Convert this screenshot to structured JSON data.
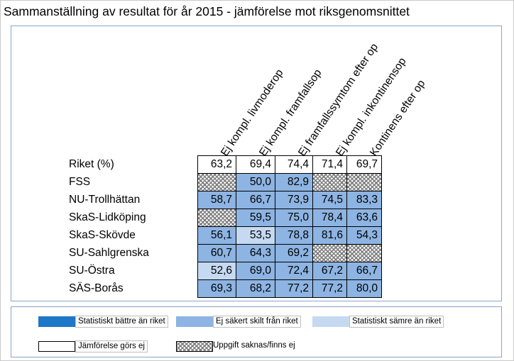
{
  "title": "Sammanställning av resultat för år 2015 - jämförelse mot riksgenomsnittet",
  "colors": {
    "battre": "#1f77c8",
    "ej_sakert": "#8db4e2",
    "samre": "#c5d9f1",
    "ej_jamforelse": "#ffffff"
  },
  "chart_data": {
    "type": "table",
    "columns": [
      "Ej kompl. livmoderop",
      "Ej kompl. framfallsop",
      "Ej framfallssymtom efter op",
      "Ej kompl. inkontinensop",
      "Kontinens efter op"
    ],
    "rows": [
      {
        "label": "Riket (%)",
        "values": [
          "63,2",
          "69,4",
          "74,4",
          "71,4",
          "69,7"
        ],
        "status": [
          "none",
          "none",
          "none",
          "none",
          "none"
        ]
      },
      {
        "label": "FSS",
        "values": [
          "",
          "50,0",
          "82,9",
          "",
          ""
        ],
        "status": [
          "missing",
          "mid",
          "mid",
          "missing",
          "missing"
        ]
      },
      {
        "label": "NU-Trollhättan",
        "values": [
          "58,7",
          "66,7",
          "73,9",
          "74,5",
          "83,3"
        ],
        "status": [
          "mid",
          "mid",
          "mid",
          "mid",
          "mid"
        ]
      },
      {
        "label": "SkaS-Lidköping",
        "values": [
          "",
          "59,5",
          "75,0",
          "78,4",
          "63,6"
        ],
        "status": [
          "missing",
          "mid",
          "mid",
          "mid",
          "mid"
        ]
      },
      {
        "label": "SkaS-Skövde",
        "values": [
          "56,1",
          "53,5",
          "78,8",
          "81,6",
          "54,3"
        ],
        "status": [
          "mid",
          "light",
          "mid",
          "mid",
          "mid"
        ]
      },
      {
        "label": "SU-Sahlgrenska",
        "values": [
          "60,7",
          "64,3",
          "69,2",
          "",
          ""
        ],
        "status": [
          "mid",
          "mid",
          "mid",
          "missing",
          "missing"
        ]
      },
      {
        "label": "SU-Östra",
        "values": [
          "52,6",
          "69,0",
          "72,4",
          "67,2",
          "66,7"
        ],
        "status": [
          "light",
          "mid",
          "mid",
          "mid",
          "mid"
        ]
      },
      {
        "label": "SÄS-Borås",
        "values": [
          "69,3",
          "68,2",
          "77,2",
          "77,2",
          "80,0"
        ],
        "status": [
          "mid",
          "mid",
          "mid",
          "mid",
          "mid"
        ]
      }
    ]
  },
  "legend": [
    {
      "key": "dark",
      "text": "Statistiskt bättre än riket"
    },
    {
      "key": "mid",
      "text": "Ej säkert skilt från riket"
    },
    {
      "key": "light",
      "text": "Statistiskt sämre än riket"
    },
    {
      "key": "none",
      "text": "Jämförelse görs ej"
    },
    {
      "key": "missing",
      "text": "Uppgift saknas/finns ej"
    }
  ]
}
